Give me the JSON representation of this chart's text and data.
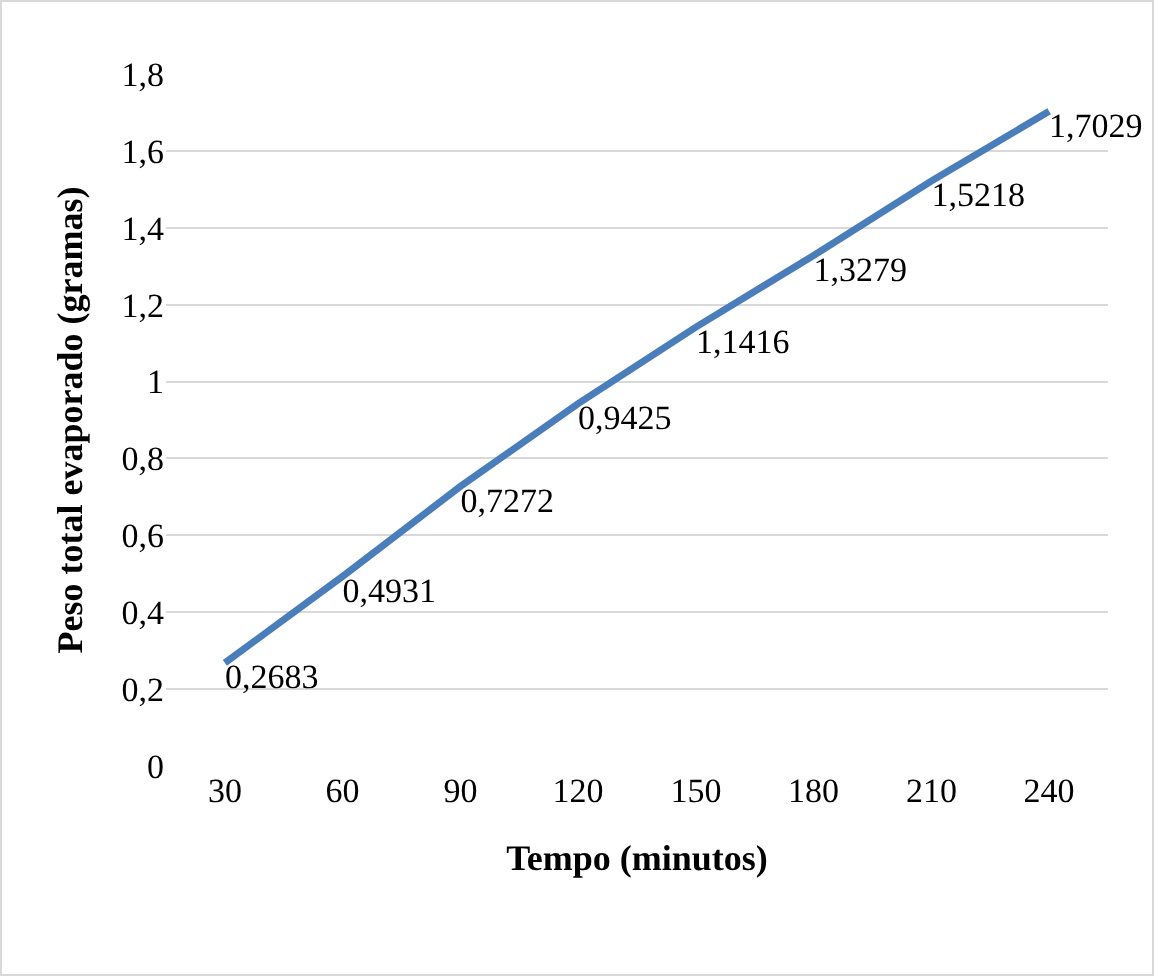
{
  "chart_data": {
    "type": "line",
    "xlabel": "Tempo (minutos)",
    "ylabel": "Peso total evaporado (gramas)",
    "categories": [
      "30",
      "60",
      "90",
      "120",
      "150",
      "180",
      "210",
      "240"
    ],
    "series": [
      {
        "color": "#4a7ebb",
        "values": [
          0.2683,
          0.4931,
          0.7272,
          0.9425,
          1.1416,
          1.3279,
          1.5218,
          1.7029
        ],
        "value_labels": [
          "0,2683",
          "0,4931",
          "0,7272",
          "0,9425",
          "1,1416",
          "1,3279",
          "1,5218",
          "1,7029"
        ]
      }
    ],
    "ylim": [
      0,
      1.8
    ],
    "yticks": [
      0,
      {
        "value": 0.2,
        "label": "0,2"
      },
      {
        "value": 0.4,
        "label": "0,4"
      },
      {
        "value": 0.6,
        "label": "0,6"
      },
      {
        "value": 0.8,
        "label": "0,8"
      },
      1,
      {
        "value": 1.2,
        "label": "1,2"
      },
      {
        "value": 1.4,
        "label": "1,4"
      },
      {
        "value": 1.6,
        "label": "1,6"
      },
      {
        "value": 1.8,
        "label": "1,8"
      }
    ],
    "grid": "y",
    "marker": "none",
    "line_style": "solid"
  }
}
